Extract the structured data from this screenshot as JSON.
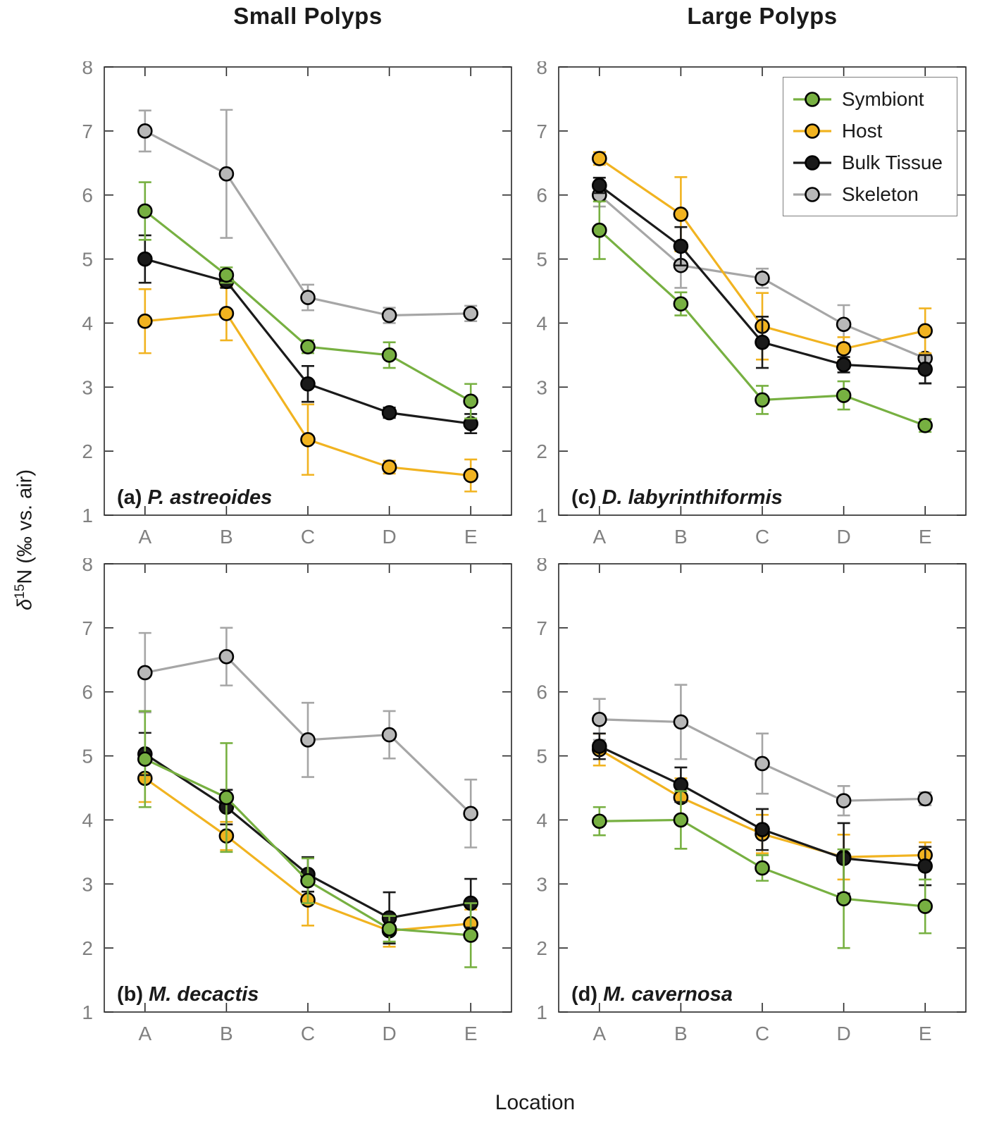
{
  "figure": {
    "column_titles": [
      "Small Polyps",
      "Large Polyps"
    ],
    "xlabel": "Location",
    "ylabel": {
      "delta": "δ",
      "superscript": "15",
      "rest": "N (‰ vs. air)",
      "text": "δ15N (‰ vs. air)"
    },
    "colors": {
      "symbiont": "#77b041",
      "host": "#f1b320",
      "bulk_tissue": "#1a1a1a",
      "skeleton_line": "#a6a6a6",
      "skeleton_marker": "#b8b8b8",
      "axis": "#262626",
      "tick_label": "#808080"
    }
  },
  "legend": {
    "position": "top-right-panel-c",
    "items": [
      {
        "label": "Symbiont",
        "line_color": "#77b041",
        "marker_color": "#77b041"
      },
      {
        "label": "Host",
        "line_color": "#f1b320",
        "marker_color": "#f1b320"
      },
      {
        "label": "Bulk Tissue",
        "line_color": "#1a1a1a",
        "marker_color": "#1a1a1a"
      },
      {
        "label": "Skeleton",
        "line_color": "#a6a6a6",
        "marker_color": "#b8b8b8"
      }
    ]
  },
  "chart_data": [
    {
      "id": "a",
      "type": "line",
      "panel_label_prefix": "(a)",
      "panel_label_name": "P. astreoides",
      "categories": [
        "A",
        "B",
        "C",
        "D",
        "E"
      ],
      "ylim": [
        1,
        8
      ],
      "yticks": [
        1,
        2,
        3,
        4,
        5,
        6,
        7,
        8
      ],
      "grid": false,
      "draw_order": [
        3,
        1,
        2,
        0
      ],
      "series": [
        {
          "name": "Symbiont",
          "color": "#77b041",
          "marker_color": "#77b041",
          "values": [
            5.75,
            4.75,
            3.63,
            3.5,
            2.78
          ],
          "errors": [
            0.45,
            0.12,
            0.1,
            0.2,
            0.27
          ]
        },
        {
          "name": "Host",
          "color": "#f1b320",
          "marker_color": "#f1b320",
          "values": [
            4.03,
            4.15,
            2.18,
            1.75,
            1.62
          ],
          "errors": [
            0.5,
            0.42,
            0.55,
            0.1,
            0.25
          ]
        },
        {
          "name": "Bulk Tissue",
          "color": "#1a1a1a",
          "marker_color": "#1a1a1a",
          "values": [
            5.0,
            4.65,
            3.05,
            2.6,
            2.43
          ],
          "errors": [
            0.37,
            0.1,
            0.28,
            0.08,
            0.15
          ]
        },
        {
          "name": "Skeleton",
          "color": "#a6a6a6",
          "marker_color": "#b8b8b8",
          "values": [
            7.0,
            6.33,
            4.4,
            4.12,
            4.15
          ],
          "errors": [
            0.32,
            1.0,
            0.2,
            0.12,
            0.12
          ]
        }
      ]
    },
    {
      "id": "c",
      "type": "line",
      "panel_label_prefix": "(c)",
      "panel_label_name": "D. labyrinthiformis",
      "categories": [
        "A",
        "B",
        "C",
        "D",
        "E"
      ],
      "ylim": [
        1,
        8
      ],
      "yticks": [
        1,
        2,
        3,
        4,
        5,
        6,
        7,
        8
      ],
      "grid": false,
      "draw_order": [
        3,
        1,
        2,
        0
      ],
      "series": [
        {
          "name": "Symbiont",
          "color": "#77b041",
          "marker_color": "#77b041",
          "values": [
            5.45,
            4.3,
            2.8,
            2.87,
            2.4
          ],
          "errors": [
            0.45,
            0.18,
            0.22,
            0.22,
            0.1
          ]
        },
        {
          "name": "Host",
          "color": "#f1b320",
          "marker_color": "#f1b320",
          "values": [
            6.57,
            5.7,
            3.95,
            3.6,
            3.88
          ],
          "errors": [
            0.1,
            0.58,
            0.52,
            0.18,
            0.35
          ]
        },
        {
          "name": "Bulk Tissue",
          "color": "#1a1a1a",
          "marker_color": "#1a1a1a",
          "values": [
            6.15,
            5.2,
            3.7,
            3.35,
            3.28
          ],
          "errors": [
            0.12,
            0.3,
            0.4,
            0.12,
            0.22
          ]
        },
        {
          "name": "Skeleton",
          "color": "#a6a6a6",
          "marker_color": "#b8b8b8",
          "values": [
            6.0,
            4.9,
            4.7,
            3.98,
            3.45
          ],
          "errors": [
            0.18,
            0.35,
            0.15,
            0.3,
            0.4
          ]
        }
      ]
    },
    {
      "id": "b",
      "type": "line",
      "panel_label_prefix": "(b)",
      "panel_label_name": "M. decactis",
      "categories": [
        "A",
        "B",
        "C",
        "D",
        "E"
      ],
      "ylim": [
        1,
        8
      ],
      "yticks": [
        1,
        2,
        3,
        4,
        5,
        6,
        7,
        8
      ],
      "grid": false,
      "draw_order": [
        3,
        1,
        2,
        0
      ],
      "series": [
        {
          "name": "Symbiont",
          "color": "#77b041",
          "marker_color": "#77b041",
          "values": [
            4.95,
            4.35,
            3.05,
            2.3,
            2.2
          ],
          "errors": [
            0.75,
            0.85,
            0.35,
            0.2,
            0.5
          ]
        },
        {
          "name": "Host",
          "color": "#f1b320",
          "marker_color": "#f1b320",
          "values": [
            4.65,
            3.75,
            2.75,
            2.27,
            2.38
          ],
          "errors": [
            0.37,
            0.22,
            0.4,
            0.25,
            0.22
          ]
        },
        {
          "name": "Bulk Tissue",
          "color": "#1a1a1a",
          "marker_color": "#1a1a1a",
          "values": [
            5.03,
            4.2,
            3.15,
            2.47,
            2.7
          ],
          "errors": [
            0.33,
            0.27,
            0.27,
            0.4,
            0.38
          ]
        },
        {
          "name": "Skeleton",
          "color": "#a6a6a6",
          "marker_color": "#b8b8b8",
          "values": [
            6.3,
            6.55,
            5.25,
            5.33,
            4.1
          ],
          "errors": [
            0.62,
            0.45,
            0.58,
            0.37,
            0.53
          ]
        }
      ]
    },
    {
      "id": "d",
      "type": "line",
      "panel_label_prefix": "(d)",
      "panel_label_name": "M. cavernosa",
      "categories": [
        "A",
        "B",
        "C",
        "D",
        "E"
      ],
      "ylim": [
        1,
        8
      ],
      "yticks": [
        1,
        2,
        3,
        4,
        5,
        6,
        7,
        8
      ],
      "grid": false,
      "draw_order": [
        3,
        1,
        2,
        0
      ],
      "series": [
        {
          "name": "Symbiont",
          "color": "#77b041",
          "marker_color": "#77b041",
          "values": [
            3.98,
            4.0,
            3.25,
            2.77,
            2.65
          ],
          "errors": [
            0.22,
            0.45,
            0.2,
            0.77,
            0.42
          ]
        },
        {
          "name": "Host",
          "color": "#f1b320",
          "marker_color": "#f1b320",
          "values": [
            5.1,
            4.35,
            3.78,
            3.42,
            3.45
          ],
          "errors": [
            0.25,
            0.3,
            0.3,
            0.35,
            0.2
          ]
        },
        {
          "name": "Bulk Tissue",
          "color": "#1a1a1a",
          "marker_color": "#1a1a1a",
          "values": [
            5.15,
            4.55,
            3.85,
            3.4,
            3.28
          ],
          "errors": [
            0.2,
            0.27,
            0.32,
            0.55,
            0.3
          ]
        },
        {
          "name": "Skeleton",
          "color": "#a6a6a6",
          "marker_color": "#b8b8b8",
          "values": [
            5.57,
            5.53,
            4.88,
            4.3,
            4.33
          ],
          "errors": [
            0.32,
            0.58,
            0.47,
            0.23,
            0.1
          ]
        }
      ]
    }
  ]
}
